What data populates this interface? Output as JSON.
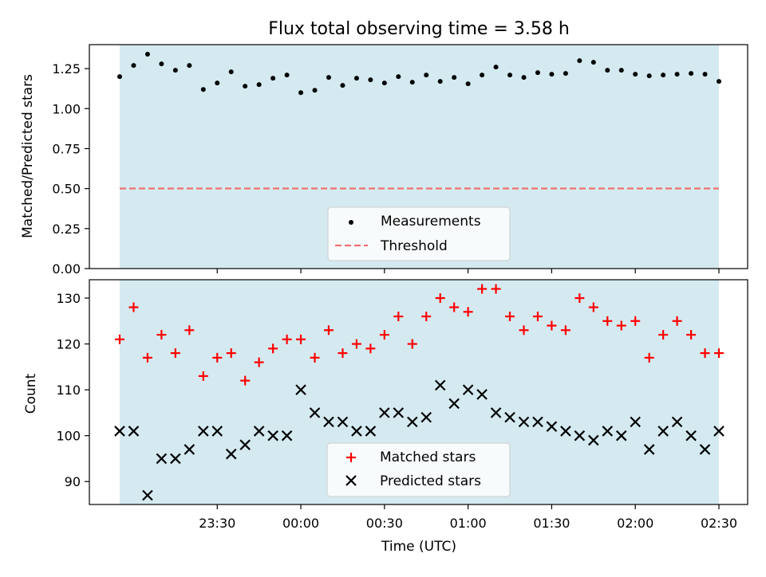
{
  "title": "Flux total observing time = 3.58 h",
  "chart_data": [
    {
      "type": "scatter",
      "ylabel": "Matched/Predicted stars",
      "ylim": [
        0,
        1.4
      ],
      "yticks": [
        0,
        0.25,
        0.5,
        0.75,
        1.0,
        1.25
      ],
      "ytick_labels": [
        "0.00",
        "0.25",
        "0.50",
        "0.75",
        "1.00",
        "1.25"
      ],
      "x_hours": [
        0,
        0.0833,
        0.1667,
        0.25,
        0.3333,
        0.4167,
        0.5,
        0.5833,
        0.6667,
        0.75,
        0.8333,
        0.9167,
        1.0,
        1.0833,
        1.1667,
        1.25,
        1.3333,
        1.4167,
        1.5,
        1.5833,
        1.6667,
        1.75,
        1.8333,
        1.9167,
        2.0,
        2.0833,
        2.1667,
        2.25,
        2.3333,
        2.4167,
        2.5,
        2.5833,
        2.6667,
        2.75,
        2.8333,
        2.9167,
        3.0,
        3.0833,
        3.1667,
        3.25,
        3.3333,
        3.4167,
        3.5,
        3.5833
      ],
      "series": [
        {
          "name": "Measurements",
          "color": "#000000",
          "values": [
            1.2,
            1.27,
            1.34,
            1.28,
            1.24,
            1.27,
            1.12,
            1.16,
            1.23,
            1.14,
            1.15,
            1.19,
            1.21,
            1.1,
            1.115,
            1.195,
            1.145,
            1.19,
            1.18,
            1.16,
            1.2,
            1.165,
            1.21,
            1.17,
            1.195,
            1.155,
            1.21,
            1.26,
            1.21,
            1.195,
            1.225,
            1.215,
            1.22,
            1.3,
            1.29,
            1.24,
            1.24,
            1.215,
            1.205,
            1.21,
            1.215,
            1.22,
            1.215,
            1.17
          ]
        },
        {
          "name": "Threshold",
          "color": "#f07070",
          "style": "dashed",
          "value": 0.5
        }
      ],
      "shaded_span_color": "#d4eaf0",
      "legend_position": "lower-center"
    },
    {
      "type": "scatter",
      "ylabel": "Count",
      "xlabel": "Time (UTC)",
      "ylim": [
        85,
        134
      ],
      "yticks": [
        90,
        100,
        110,
        120,
        130
      ],
      "ytick_labels": [
        "90",
        "100",
        "110",
        "120",
        "130"
      ],
      "xticks_hours": [
        0.5833,
        1.0833,
        1.5833,
        2.0833,
        2.5833,
        3.0833,
        3.5833
      ],
      "xtick_labels": [
        "23:30",
        "00:00",
        "00:30",
        "01:00",
        "01:30",
        "02:00",
        "02:30"
      ],
      "x_hours": [
        0,
        0.0833,
        0.1667,
        0.25,
        0.3333,
        0.4167,
        0.5,
        0.5833,
        0.6667,
        0.75,
        0.8333,
        0.9167,
        1.0,
        1.0833,
        1.1667,
        1.25,
        1.3333,
        1.4167,
        1.5,
        1.5833,
        1.6667,
        1.75,
        1.8333,
        1.9167,
        2.0,
        2.0833,
        2.1667,
        2.25,
        2.3333,
        2.4167,
        2.5,
        2.5833,
        2.6667,
        2.75,
        2.8333,
        2.9167,
        3.0,
        3.0833,
        3.1667,
        3.25,
        3.3333,
        3.4167,
        3.5,
        3.5833
      ],
      "series": [
        {
          "name": "Matched stars",
          "marker": "+",
          "color": "#ff0000",
          "values": [
            121,
            128,
            117,
            122,
            118,
            123,
            113,
            117,
            118,
            112,
            116,
            119,
            121,
            121,
            117,
            123,
            118,
            120,
            119,
            122,
            126,
            120,
            126,
            130,
            128,
            127,
            132,
            132,
            126,
            123,
            126,
            124,
            123,
            130,
            128,
            125,
            124,
            125,
            117,
            122,
            125,
            122,
            118,
            118
          ]
        },
        {
          "name": "Predicted stars",
          "marker": "x",
          "color": "#000000",
          "values": [
            101,
            101,
            87,
            95,
            95,
            97,
            101,
            101,
            96,
            98,
            101,
            100,
            100,
            110,
            105,
            103,
            103,
            101,
            101,
            105,
            105,
            103,
            104,
            111,
            107,
            110,
            109,
            105,
            104,
            103,
            103,
            102,
            101,
            100,
            99,
            101,
            100,
            103,
            97,
            101,
            103,
            100,
            97,
            101
          ]
        }
      ],
      "shaded_span_color": "#d4eaf0",
      "legend_position": "lower-center"
    }
  ]
}
